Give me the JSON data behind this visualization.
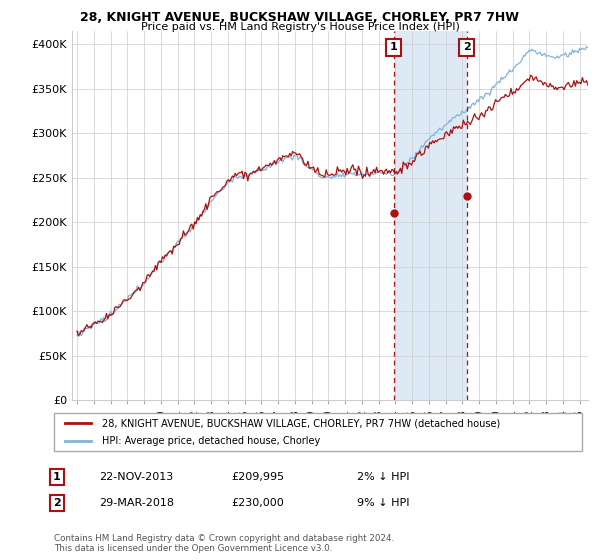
{
  "title1": "28, KNIGHT AVENUE, BUCKSHAW VILLAGE, CHORLEY, PR7 7HW",
  "title2": "Price paid vs. HM Land Registry's House Price Index (HPI)",
  "ylabel_ticks": [
    "£0",
    "£50K",
    "£100K",
    "£150K",
    "£200K",
    "£250K",
    "£300K",
    "£350K",
    "£400K"
  ],
  "ytick_values": [
    0,
    50000,
    100000,
    150000,
    200000,
    250000,
    300000,
    350000,
    400000
  ],
  "ylim": [
    0,
    415000
  ],
  "sale1_x": 2013.9,
  "sale1_y": 209995,
  "sale2_x": 2018.25,
  "sale2_y": 230000,
  "shaded_xmin": 2013.9,
  "shaded_xmax": 2018.25,
  "legend_line1": "28, KNIGHT AVENUE, BUCKSHAW VILLAGE, CHORLEY, PR7 7HW (detached house)",
  "legend_line2": "HPI: Average price, detached house, Chorley",
  "annotation1_date": "22-NOV-2013",
  "annotation1_price": "£209,995",
  "annotation1_hpi": "2% ↓ HPI",
  "annotation2_date": "29-MAR-2018",
  "annotation2_price": "£230,000",
  "annotation2_hpi": "9% ↓ HPI",
  "footer": "Contains HM Land Registry data © Crown copyright and database right 2024.\nThis data is licensed under the Open Government Licence v3.0.",
  "hpi_color": "#82b4d8",
  "price_color": "#aa1111",
  "shaded_color": "#ddeaf5",
  "xmin": 1994.7,
  "xmax": 2025.5
}
